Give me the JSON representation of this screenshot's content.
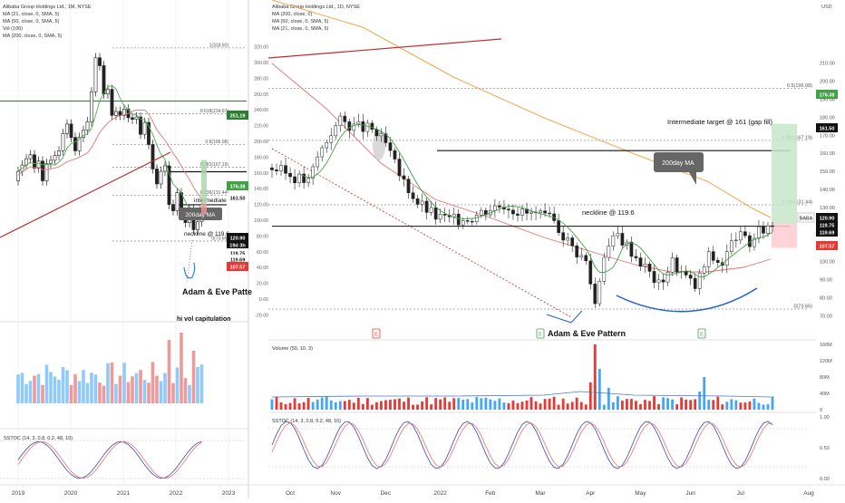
{
  "left_chart": {
    "legend": [
      "Alibaba Group Holdings Ltd., 1M, NYSE",
      "MA (21, close, 0, SMA, 5)",
      "MA (50, close, 0, SMA, 5)",
      "Vol (100)",
      "MA (200, close, 0, SMA, 5)"
    ],
    "annotations": {
      "label_200ma": "200day MA",
      "intermediate": "intermediate tar",
      "neckline": "neckline @ 119.6",
      "pattern": "Adam & Eve Patte",
      "capitulation": "hi vol capitulation"
    },
    "fib_labels": [
      "1(318.50)",
      "0.618(234.97)",
      "0.5(196.08)",
      "0.382(167.19)",
      "0.236(131.44)",
      "0(73.66)"
    ],
    "price_ticks": [
      "320.00",
      "300.00",
      "280.00",
      "260.00",
      "240.00",
      "220.00",
      "200.00",
      "180.00",
      "160.00",
      "140.00",
      "120.00",
      "100.00",
      "80.00",
      "60.00",
      "40.00",
      "20.00",
      "0.00",
      "-20.00",
      "-40.00"
    ],
    "x_ticks": [
      "2019",
      "2020",
      "2021",
      "2022",
      "2023"
    ],
    "stoch_label": "SSTOC (14, 3, 0.8, 0.2, 48, 10)",
    "price_tags": [
      {
        "text": "251.19",
        "color": "#2e7d32"
      },
      {
        "text": "176.38",
        "color": "#43a047"
      },
      {
        "text": "161.50",
        "color": "#111111"
      },
      {
        "text": "BABA",
        "color": "#ffffff"
      },
      {
        "text": "120.90",
        "color": "#ffffff"
      },
      {
        "text": "19d 3h",
        "color": "#ffffff"
      },
      {
        "text": "119.75",
        "color": "#111111"
      },
      {
        "text": "119.69",
        "color": "#111111"
      },
      {
        "text": "107.57",
        "color": "#e53935"
      }
    ]
  },
  "right_chart": {
    "legend": [
      "Alibaba Group Holdings Ltd., 1D, NYSE",
      "MA (200, close, 0)",
      "MA (50, close, 0, SMA, 5)",
      "MA (21, close, 0, SMA, 5)"
    ],
    "annotations": {
      "intermediate": "Intermediate target @ 161 (gap fill)",
      "label_200ma": "200day MA",
      "neckline": "neckline @ 119.6",
      "pattern": "Adam & Eve Pattern",
      "volume_label": "Volume (50, 10, 3)",
      "stoch_label": "SSTOC (14, 3, 0.8, 0.2, 48, 10)"
    },
    "fib_labels": [
      "0.5(196.08)",
      "0.382(167.19)",
      "0.236(131.44)",
      "0(73.66)"
    ],
    "price_ticks": [
      "USD",
      "210.00",
      "200.00",
      "190.00",
      "180.00",
      "170.00",
      "160.00",
      "150.00",
      "140.00",
      "130.00",
      "120.00",
      "110.00",
      "100.00",
      "90.00",
      "80.00",
      "70.00"
    ],
    "volume_ticks": [
      "160M",
      "120M",
      "80M",
      "40M",
      "0"
    ],
    "stoch_ticks": [
      "1.00",
      "0.50",
      "0.00"
    ],
    "x_ticks": [
      "Oct",
      "Nov",
      "Dec",
      "2022",
      "Feb",
      "Mar",
      "Apr",
      "May",
      "Jun",
      "Jul",
      "Aug"
    ],
    "price_tags": [
      {
        "text": "176.38",
        "color": "#43a047"
      },
      {
        "text": "161.50",
        "color": "#111111"
      },
      {
        "text": "BABA",
        "color": "#111111"
      },
      {
        "text": "120.90",
        "color": "#111111"
      },
      {
        "text": "119.75",
        "color": "#111111"
      },
      {
        "text": "119.69",
        "color": "#111111"
      },
      {
        "text": "107.57",
        "color": "#e53935"
      }
    ],
    "event_markers": [
      "E",
      "E",
      "E"
    ]
  },
  "chart_data": [
    {
      "type": "candlestick",
      "title": "Alibaba Group Holdings Ltd., 1M, NYSE",
      "x_range": [
        "2019",
        "2023"
      ],
      "ylim": [
        0,
        320
      ],
      "series": [
        {
          "name": "MA (21, close, 0, SMA, 5)",
          "values": []
        },
        {
          "name": "MA (50, close, 0, SMA, 5)",
          "values": []
        },
        {
          "name": "MA (200, close, 0, SMA, 5)",
          "values": []
        }
      ],
      "monthly_close": [
        162,
        170,
        178,
        183,
        166,
        175,
        150,
        172,
        176,
        182,
        188,
        210,
        222,
        205,
        188,
        205,
        214,
        225,
        263,
        306,
        296,
        260,
        266,
        233,
        238,
        233,
        241,
        230,
        228,
        231,
        209,
        224,
        196,
        165,
        146,
        162,
        169,
        120,
        112,
        135,
        109,
        97,
        113,
        88,
        98,
        120
      ],
      "horizontal_levels": [
        251.19,
        161.5,
        119.6,
        73.66
      ]
    },
    {
      "type": "candlestick",
      "title": "Alibaba Group Holdings Ltd., 1D, NYSE",
      "x_range": [
        "Oct 2021",
        "Aug 2022"
      ],
      "ylim": [
        70,
        210
      ],
      "close_path": [
        [
          0,
          152
        ],
        [
          3,
          149
        ],
        [
          8,
          144
        ],
        [
          10,
          158
        ],
        [
          13,
          172
        ],
        [
          15,
          178
        ],
        [
          18,
          175
        ],
        [
          22,
          173
        ],
        [
          25,
          165
        ],
        [
          28,
          148
        ],
        [
          32,
          133
        ],
        [
          36,
          125
        ],
        [
          40,
          123
        ],
        [
          44,
          125
        ],
        [
          48,
          130
        ],
        [
          51,
          132
        ],
        [
          55,
          127
        ],
        [
          58,
          126
        ],
        [
          62,
          122
        ],
        [
          66,
          108
        ],
        [
          69,
          100
        ],
        [
          71,
          77
        ],
        [
          73,
          105
        ],
        [
          76,
          115
        ],
        [
          79,
          106
        ],
        [
          82,
          97
        ],
        [
          85,
          87
        ],
        [
          88,
          100
        ],
        [
          90,
          94
        ],
        [
          93,
          86
        ],
        [
          96,
          103
        ],
        [
          99,
          99
        ],
        [
          102,
          115
        ],
        [
          105,
          110
        ],
        [
          107,
          116
        ],
        [
          109,
          120
        ],
        [
          110,
          120.9
        ]
      ],
      "fib_levels": [
        {
          "label": "0.5",
          "value": 196.08
        },
        {
          "label": "0.382",
          "value": 167.19
        },
        {
          "label": "0.236",
          "value": 131.44
        },
        {
          "label": "0",
          "value": 73.66
        }
      ],
      "targets": {
        "intermediate": 161.5,
        "neckline": 119.6,
        "upper_box": 176.38,
        "stop": 107.57,
        "last": 120.9
      },
      "volume_ylim": [
        0,
        160
      ]
    }
  ]
}
